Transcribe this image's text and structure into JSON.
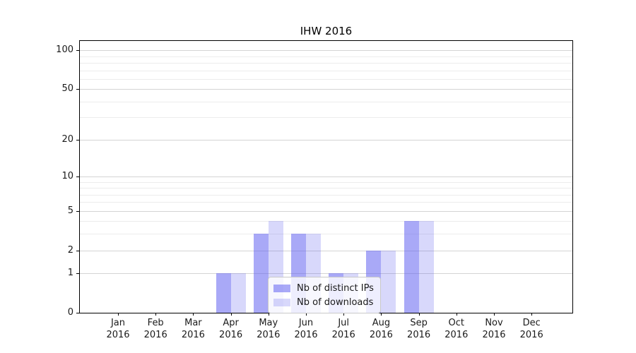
{
  "chart_data": {
    "type": "bar",
    "title": "IHW 2016",
    "categories": [
      "Jan",
      "Feb",
      "Mar",
      "Apr",
      "May",
      "Jun",
      "Jul",
      "Aug",
      "Sep",
      "Oct",
      "Nov",
      "Dec"
    ],
    "category_year": "2016",
    "series": [
      {
        "name": "Nb of distinct IPs",
        "color": "rgba(92,92,240,0.53)",
        "values": [
          0,
          0,
          0,
          1,
          3,
          3,
          1,
          2,
          4,
          0,
          0,
          0
        ]
      },
      {
        "name": "Nb of downloads",
        "color": "rgba(92,92,240,0.24)",
        "values": [
          0,
          0,
          0,
          1,
          4,
          3,
          1,
          2,
          4,
          0,
          0,
          0
        ]
      }
    ],
    "yscale": "log1p",
    "ylim": [
      0,
      118
    ],
    "y_ticks": [
      0,
      1,
      2,
      5,
      10,
      20,
      50,
      100
    ],
    "y_minor_gridlines": [
      3,
      4,
      6,
      7,
      8,
      9,
      30,
      40,
      60,
      70,
      80,
      90
    ],
    "grid": true,
    "legend_position": "inside-bottom-center",
    "colors": {
      "major_grid": "#d4d4d4",
      "minor_grid": "#ececec",
      "axis": "#000000",
      "text": "#1a1a1a",
      "background": "#ffffff"
    }
  }
}
